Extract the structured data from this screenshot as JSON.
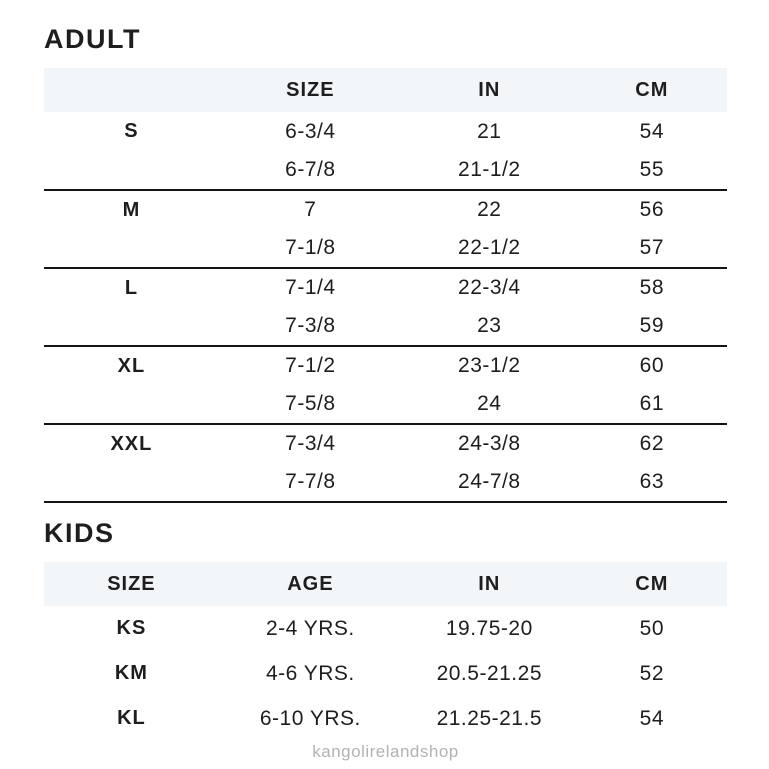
{
  "adult": {
    "heading": "ADULT",
    "columns": {
      "label": "",
      "size": "SIZE",
      "in": "IN",
      "cm": "CM"
    },
    "groups": [
      {
        "label": "S",
        "rows": [
          [
            "6-3/4",
            "21",
            "54"
          ],
          [
            "6-7/8",
            "21-1/2",
            "55"
          ]
        ]
      },
      {
        "label": "M",
        "rows": [
          [
            "7",
            "22",
            "56"
          ],
          [
            "7-1/8",
            "22-1/2",
            "57"
          ]
        ]
      },
      {
        "label": "L",
        "rows": [
          [
            "7-1/4",
            "22-3/4",
            "58"
          ],
          [
            "7-3/8",
            "23",
            "59"
          ]
        ]
      },
      {
        "label": "XL",
        "rows": [
          [
            "7-1/2",
            "23-1/2",
            "60"
          ],
          [
            "7-5/8",
            "24",
            "61"
          ]
        ]
      },
      {
        "label": "XXL",
        "rows": [
          [
            "7-3/4",
            "24-3/8",
            "62"
          ],
          [
            "7-7/8",
            "24-7/8",
            "63"
          ]
        ]
      }
    ]
  },
  "kids": {
    "heading": "KIDS",
    "columns": {
      "size": "SIZE",
      "age": "AGE",
      "in": "IN",
      "cm": "CM"
    },
    "rows": [
      {
        "size": "KS",
        "age": "2-4 YRS.",
        "in": "19.75-20",
        "cm": "50"
      },
      {
        "size": "KM",
        "age": "4-6 YRS.",
        "in": "20.5-21.25",
        "cm": "52"
      },
      {
        "size": "KL",
        "age": "6-10 YRS.",
        "in": "21.25-21.5",
        "cm": "54"
      }
    ]
  },
  "footer": {
    "watermark": "kangolirelandshop"
  },
  "colors": {
    "header_band": "#f3f6f9",
    "text": "#1e1e1e",
    "divider": "#141414",
    "watermark": "#b3b3b3"
  }
}
